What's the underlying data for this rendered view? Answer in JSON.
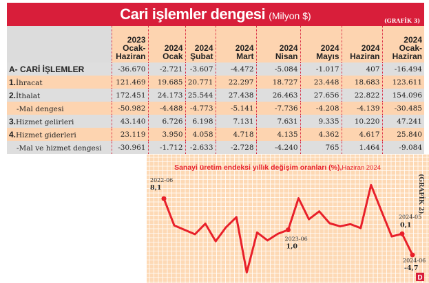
{
  "table": {
    "title": "Cari işlemler dengesi",
    "unit": "(Milyon $)",
    "tag": "(GRAFİK 3)",
    "columns": [
      [
        "2023",
        "Ocak-",
        "Haziran"
      ],
      [
        "2024",
        "Ocak"
      ],
      [
        "2024",
        "Şubat"
      ],
      [
        "2024",
        "Mart"
      ],
      [
        "2024",
        "Nisan"
      ],
      [
        "2024",
        "Mayıs"
      ],
      [
        "2024",
        "Haziran"
      ],
      [
        "2024",
        "Ocak-",
        "Haziran"
      ]
    ],
    "rows": [
      {
        "num": "",
        "label": "A- CARİ İŞLEMLER",
        "values": [
          "-36.670",
          "-2.721",
          "-3.607",
          "-4.472",
          "-5.084",
          "-1.017",
          "407",
          "-16.494"
        ]
      },
      {
        "num": "1.",
        "label": "İhracat",
        "values": [
          "121.469",
          "19.685",
          "20.771",
          "22.297",
          "18.727",
          "23.448",
          "18.683",
          "123.611"
        ]
      },
      {
        "num": "2.",
        "label": "İthalat",
        "values": [
          "172.451",
          "24.173",
          "25.544",
          "27.438",
          "26.463",
          "27.656",
          "22.822",
          "154.096"
        ]
      },
      {
        "num": "",
        "label": "-Mal dengesi",
        "values": [
          "-50.982",
          "-4.488",
          "-4.773",
          "-5.141",
          "-7.736",
          "-4.208",
          "-4.139",
          "-30.485"
        ]
      },
      {
        "num": "3.",
        "label": "Hizmet gelirleri",
        "values": [
          "43.140",
          "6.726",
          "6.198",
          "7.131",
          "7.631",
          "9.335",
          "10.220",
          "47.241"
        ]
      },
      {
        "num": "4.",
        "label": "Hizmet giderleri",
        "values": [
          "23.119",
          "3.950",
          "4.058",
          "4.718",
          "4.135",
          "4.362",
          "4.617",
          "25.840"
        ]
      },
      {
        "num": "",
        "label": "-Mal ve hizmet dengesi",
        "values": [
          "-30.961",
          "-1.712",
          "-2.633",
          "-2.728",
          "-4.240",
          "765",
          "1.464",
          "-9.084"
        ]
      }
    ]
  },
  "chart_data": {
    "type": "line",
    "title": "Sanayi üretim endeksi yıllık değişim oranları (%),",
    "subtitle": "Haziran 2024",
    "tag": "(GRAFİK 2)",
    "logo": "D",
    "x": [
      "2022-06",
      "2022-07",
      "2022-08",
      "2022-09",
      "2022-10",
      "2022-11",
      "2022-12",
      "2023-01",
      "2023-02",
      "2023-03",
      "2023-04",
      "2023-05",
      "2023-06",
      "2023-07",
      "2023-08",
      "2023-09",
      "2023-10",
      "2023-11",
      "2023-12",
      "2024-01",
      "2024-02",
      "2024-03",
      "2024-04",
      "2024-05",
      "2024-06"
    ],
    "values": [
      8.1,
      2.0,
      1.0,
      0.0,
      2.4,
      -1.6,
      1.6,
      3.9,
      -8.7,
      0.4,
      -1.4,
      0.1,
      1.0,
      8.2,
      3.4,
      5.2,
      2.5,
      1.8,
      2.3,
      1.4,
      11.2,
      5.3,
      -0.5,
      0.1,
      -4.7
    ],
    "annotations": [
      {
        "date": "2022-06",
        "value": "8,1"
      },
      {
        "date": "2023-06",
        "value": "1,0"
      },
      {
        "date": "2024-05",
        "value": "0,1"
      },
      {
        "date": "2024-06",
        "value": "-4,7"
      }
    ],
    "grid": true,
    "colors": {
      "line": "#e8202a",
      "background": "#fdd9b5",
      "grid": "#ffffff"
    }
  }
}
